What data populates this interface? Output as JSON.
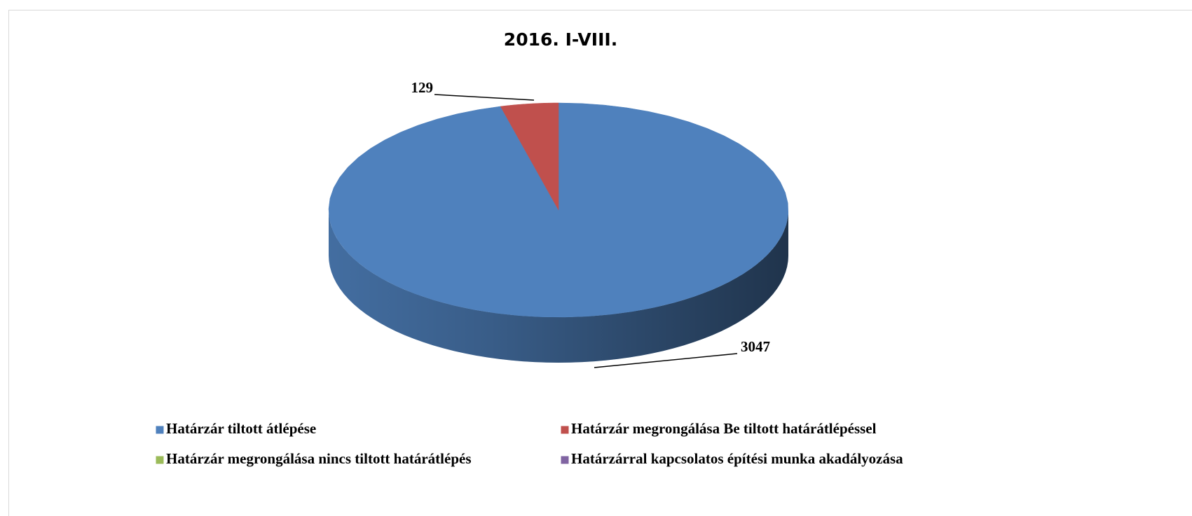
{
  "chart_data": {
    "type": "pie",
    "title": "2016. I-VIII.",
    "categories": [
      "Határzár tiltott átlépése",
      "Határzár megrongálása Be tiltott határátlépéssel",
      "Határzár megrongálása nincs tiltott határátlépés",
      "Határzárral kapcsolatos építési munka akadályozása"
    ],
    "values": [
      3047,
      129,
      0,
      0
    ],
    "colors": [
      "#4f81bd",
      "#c0504d",
      "#9bbb59",
      "#8064a2"
    ],
    "legend": "bottom"
  }
}
